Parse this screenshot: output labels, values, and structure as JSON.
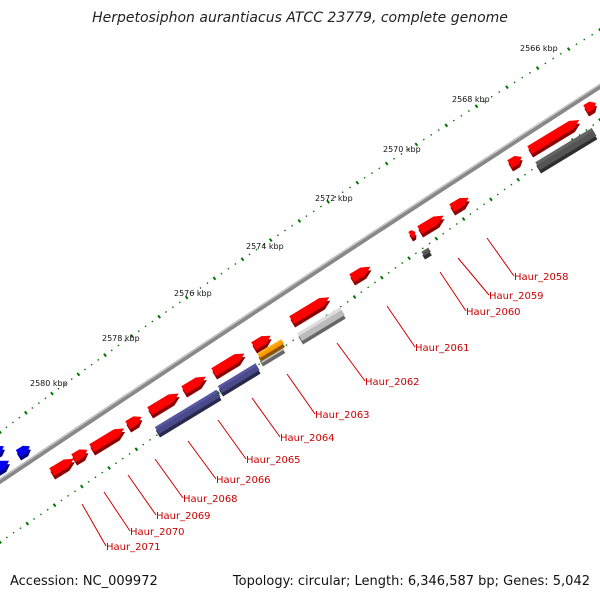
{
  "title": "Herpetosiphon aurantiacus ATCC 23779, complete genome",
  "footer": {
    "accession": "Accession: NC_009972",
    "summary": "Topology: circular; Length: 6,346,587 bp; Genes: 5,042"
  },
  "colors": {
    "forward": "#ff0000",
    "reverse_grey": "#555555",
    "light_grey": "#bbbbbb",
    "purple": "#4a4a8a",
    "orange": "#ff9900",
    "blue": "#0000ee",
    "backbone": "#888888",
    "tick": "#007700",
    "label": "#cc0000"
  },
  "axis_labels": [
    "2566 kbp",
    "2568 kbp",
    "2570 kbp",
    "2572 kbp",
    "2574 kbp",
    "2576 kbp",
    "2578 kbp",
    "2580 kbp"
  ],
  "genes": [
    {
      "name": "Haur_2058"
    },
    {
      "name": "Haur_2059"
    },
    {
      "name": "Haur_2060"
    },
    {
      "name": "Haur_2061"
    },
    {
      "name": "Haur_2062"
    },
    {
      "name": "Haur_2063"
    },
    {
      "name": "Haur_2064"
    },
    {
      "name": "Haur_2065"
    },
    {
      "name": "Haur_2066"
    },
    {
      "name": "Haur_2068"
    },
    {
      "name": "Haur_2069"
    },
    {
      "name": "Haur_2070"
    },
    {
      "name": "Haur_2071"
    }
  ]
}
